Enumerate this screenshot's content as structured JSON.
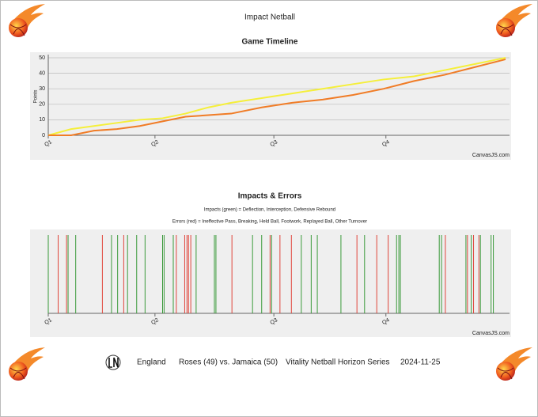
{
  "header": {
    "title": "Impact Netball"
  },
  "chart_data": [
    {
      "type": "line",
      "title": "Game Timeline",
      "y_label": "Points",
      "credit": "CanvasJS.com",
      "x": [
        0,
        3,
        6,
        9,
        12,
        15,
        18,
        21,
        24,
        28,
        32,
        36,
        40,
        44,
        48,
        52,
        56,
        60
      ],
      "series": [
        {
          "color": "#f5ef3a",
          "values": [
            0,
            4,
            6,
            8,
            10,
            11,
            14,
            18,
            21,
            24,
            27,
            30,
            33,
            36,
            38,
            42,
            46,
            50
          ]
        },
        {
          "color": "#f07c26",
          "values": [
            0,
            0,
            3,
            4,
            6,
            9,
            12,
            13,
            14,
            18,
            21,
            23,
            26,
            30,
            35,
            39,
            44,
            49
          ]
        }
      ],
      "xlim": [
        0,
        60
      ],
      "xticks": [
        {
          "value": 0,
          "label": "Q1"
        },
        {
          "value": 14,
          "label": "Q2"
        },
        {
          "value": 29.6,
          "label": "Q3"
        },
        {
          "value": 44.3,
          "label": "Q4"
        }
      ],
      "ylim": [
        0,
        50
      ],
      "yticks": [
        0,
        10,
        20,
        30,
        40,
        50
      ],
      "grid": true
    },
    {
      "type": "events",
      "title": "Impacts & Errors",
      "subtitles": [
        "Impacts (green) = Deflection, Interception, Defensive Rebound",
        "Errors (red) = Ineffective Pass, Breaking, Held Ball, Footwork, Replayed Ball, Other Turnover"
      ],
      "credit": "CanvasJS.com",
      "series": [
        {
          "color": "#3a9a3a",
          "x": [
            0,
            2.6,
            3.6,
            8.3,
            9.1,
            10.4,
            11.6,
            12.7,
            15.0,
            15.2,
            16.4,
            19.4,
            21.8,
            22.0,
            26.8,
            28.0,
            29.3,
            33.2,
            34.5,
            35.3,
            38.4,
            41.5,
            45.7,
            46.0,
            46.2,
            51.3,
            51.6,
            54.8,
            55.5,
            56.7,
            58.1,
            58.4
          ]
        },
        {
          "color": "#e0443a",
          "x": [
            1.3,
            2.4,
            7.1,
            9.9,
            16.8,
            17.9,
            18.2,
            18.4,
            18.7,
            24.1,
            29.1,
            30.4,
            31.9,
            40.5,
            43.1,
            44.6,
            52.1,
            55.0,
            55.8,
            56.5
          ]
        }
      ],
      "xlim": [
        0,
        60
      ],
      "xticks": [
        {
          "value": 0,
          "label": "Q1"
        },
        {
          "value": 14,
          "label": "Q2"
        },
        {
          "value": 29.6,
          "label": "Q3"
        },
        {
          "value": 44.3,
          "label": "Q4"
        }
      ]
    }
  ],
  "footer": {
    "country": "England",
    "match": "Roses (49) vs. Jamaica (50)",
    "series": "Vitality Netball Horizon Series",
    "date": "2024-11-25"
  }
}
